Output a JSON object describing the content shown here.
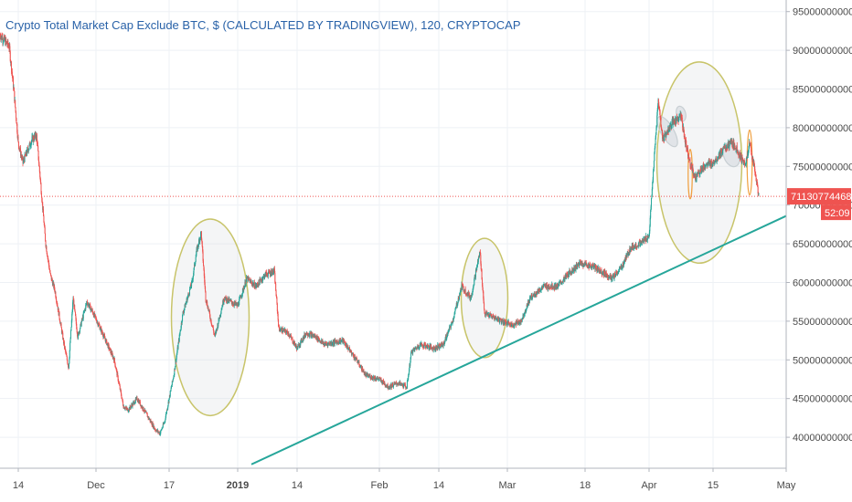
{
  "chart_data": {
    "type": "candlestick",
    "title": "Crypto Total Market Cap Exclude BTC, $ (CALCULATED BY TRADINGVIEW), 120, CRYPTOCAP",
    "y_ticks": [
      40000000000,
      45000000000,
      50000000000,
      55000000000,
      60000000000,
      65000000000,
      70000000000,
      75000000000,
      80000000000,
      85000000000,
      90000000000,
      95000000000
    ],
    "y_tick_labels": [
      "40000000000",
      "45000000000",
      "50000000000",
      "55000000000",
      "60000000000",
      "65000000000",
      "70000000000",
      "75000000000",
      "80000000000",
      "85000000000",
      "90000000000",
      "95000000000"
    ],
    "ylim": [
      36000000000,
      96500000000
    ],
    "x_tick_labels": [
      {
        "label": "14",
        "date": "2018-11-14"
      },
      {
        "label": "Dec",
        "date": "2018-12-01"
      },
      {
        "label": "17",
        "date": "2018-12-17"
      },
      {
        "label": "2019",
        "date": "2019-01-01",
        "bold": true
      },
      {
        "label": "14",
        "date": "2019-01-14"
      },
      {
        "label": "Feb",
        "date": "2019-02-01"
      },
      {
        "label": "14",
        "date": "2019-02-14"
      },
      {
        "label": "Mar",
        "date": "2019-03-01"
      },
      {
        "label": "18",
        "date": "2019-03-18"
      },
      {
        "label": "Apr",
        "date": "2019-04-01"
      },
      {
        "label": "15",
        "date": "2019-04-15"
      },
      {
        "label": "May",
        "date": "2019-05-01"
      }
    ],
    "xlim": [
      "2018-11-10",
      "2019-05-01"
    ],
    "last_price": 71130774468,
    "last_price_label": "71130774468",
    "countdown_label": "52:09",
    "price_path": [
      [
        "2018-11-10",
        92000000000
      ],
      [
        "2018-11-12",
        90500000000
      ],
      [
        "2018-11-13",
        85000000000
      ],
      [
        "2018-11-14",
        78000000000
      ],
      [
        "2018-11-15",
        75500000000
      ],
      [
        "2018-11-17",
        78500000000
      ],
      [
        "2018-11-18",
        79000000000
      ],
      [
        "2018-11-19",
        72000000000
      ],
      [
        "2018-11-20",
        65000000000
      ],
      [
        "2018-11-21",
        61000000000
      ],
      [
        "2018-11-22",
        59000000000
      ],
      [
        "2018-11-24",
        52000000000
      ],
      [
        "2018-11-25",
        49000000000
      ],
      [
        "2018-11-26",
        58000000000
      ],
      [
        "2018-11-27",
        53000000000
      ],
      [
        "2018-11-29",
        57500000000
      ],
      [
        "2018-11-30",
        56500000000
      ],
      [
        "2018-12-02",
        54000000000
      ],
      [
        "2018-12-05",
        50000000000
      ],
      [
        "2018-12-07",
        44000000000
      ],
      [
        "2018-12-08",
        43500000000
      ],
      [
        "2018-12-10",
        45000000000
      ],
      [
        "2018-12-12",
        43000000000
      ],
      [
        "2018-12-14",
        41000000000
      ],
      [
        "2018-12-15",
        40500000000
      ],
      [
        "2018-12-16",
        42000000000
      ],
      [
        "2018-12-17",
        45000000000
      ],
      [
        "2018-12-18",
        48000000000
      ],
      [
        "2018-12-19",
        52000000000
      ],
      [
        "2018-12-20",
        56000000000
      ],
      [
        "2018-12-21",
        58000000000
      ],
      [
        "2018-12-22",
        60000000000
      ],
      [
        "2018-12-23",
        64000000000
      ],
      [
        "2018-12-24",
        66500000000
      ],
      [
        "2018-12-25",
        58000000000
      ],
      [
        "2018-12-27",
        53000000000
      ],
      [
        "2018-12-29",
        58000000000
      ],
      [
        "2019-01-01",
        57000000000
      ],
      [
        "2019-01-03",
        60500000000
      ],
      [
        "2019-01-05",
        59500000000
      ],
      [
        "2019-01-07",
        61000000000
      ],
      [
        "2019-01-09",
        61500000000
      ],
      [
        "2019-01-10",
        54000000000
      ],
      [
        "2019-01-12",
        53500000000
      ],
      [
        "2019-01-14",
        51500000000
      ],
      [
        "2019-01-16",
        53500000000
      ],
      [
        "2019-01-18",
        53000000000
      ],
      [
        "2019-01-20",
        52000000000
      ],
      [
        "2019-01-24",
        52500000000
      ],
      [
        "2019-01-27",
        50000000000
      ],
      [
        "2019-01-29",
        48000000000
      ],
      [
        "2019-02-01",
        47500000000
      ],
      [
        "2019-02-03",
        46500000000
      ],
      [
        "2019-02-05",
        47000000000
      ],
      [
        "2019-02-07",
        46500000000
      ],
      [
        "2019-02-08",
        51000000000
      ],
      [
        "2019-02-10",
        52000000000
      ],
      [
        "2019-02-13",
        51500000000
      ],
      [
        "2019-02-15",
        52000000000
      ],
      [
        "2019-02-17",
        55000000000
      ],
      [
        "2019-02-19",
        59500000000
      ],
      [
        "2019-02-21",
        58000000000
      ],
      [
        "2019-02-23",
        64000000000
      ],
      [
        "2019-02-24",
        56000000000
      ],
      [
        "2019-02-26",
        55500000000
      ],
      [
        "2019-02-28",
        55000000000
      ],
      [
        "2019-03-02",
        54500000000
      ],
      [
        "2019-03-04",
        55000000000
      ],
      [
        "2019-03-06",
        58000000000
      ],
      [
        "2019-03-09",
        59500000000
      ],
      [
        "2019-03-12",
        59500000000
      ],
      [
        "2019-03-15",
        61500000000
      ],
      [
        "2019-03-17",
        62500000000
      ],
      [
        "2019-03-20",
        62000000000
      ],
      [
        "2019-03-24",
        60500000000
      ],
      [
        "2019-03-26",
        62000000000
      ],
      [
        "2019-03-28",
        64500000000
      ],
      [
        "2019-03-30",
        65000000000
      ],
      [
        "2019-04-01",
        66000000000
      ],
      [
        "2019-04-02",
        75000000000
      ],
      [
        "2019-04-03",
        83500000000
      ],
      [
        "2019-04-04",
        78500000000
      ],
      [
        "2019-04-06",
        80500000000
      ],
      [
        "2019-04-08",
        81500000000
      ],
      [
        "2019-04-09",
        78000000000
      ],
      [
        "2019-04-10",
        75500000000
      ],
      [
        "2019-04-11",
        73500000000
      ],
      [
        "2019-04-13",
        75000000000
      ],
      [
        "2019-04-15",
        75500000000
      ],
      [
        "2019-04-17",
        77000000000
      ],
      [
        "2019-04-19",
        78000000000
      ],
      [
        "2019-04-20",
        77500000000
      ],
      [
        "2019-04-22",
        75000000000
      ],
      [
        "2019-04-23",
        78000000000
      ],
      [
        "2019-04-24",
        75000000000
      ],
      [
        "2019-04-25",
        71130774468
      ]
    ],
    "trendline": {
      "color": "#26a69a",
      "points": [
        [
          "2019-01-04",
          36500000000
        ],
        [
          "2019-05-01",
          68600000000
        ]
      ]
    },
    "ellipses": [
      {
        "center": [
          "2018-12-26",
          55500000000
        ],
        "rx_days": 8.5,
        "ry": 12700000000
      },
      {
        "center": [
          "2019-02-24",
          58000000000
        ],
        "rx_days": 5.1,
        "ry": 7700000000
      },
      {
        "center": [
          "2019-04-12",
          75500000000
        ],
        "rx_days": 9.3,
        "ry": 13000000000
      }
    ],
    "highlights": [
      {
        "center": [
          "2019-04-05",
          79500000000
        ],
        "rx_days": 1.4,
        "ry": 2200000000,
        "angle": -30,
        "color": "#c8cfd3",
        "fill": true
      },
      {
        "center": [
          "2019-04-08",
          81800000000
        ],
        "rx_days": 1.0,
        "ry": 1000000000,
        "angle": -15,
        "color": "#c8cfd3",
        "fill": true
      },
      {
        "center": [
          "2019-04-10",
          74000000000
        ],
        "rx_days": 0.45,
        "ry": 3200000000,
        "angle": 0,
        "color": "#f0a040",
        "fill": false
      },
      {
        "center": [
          "2019-04-19",
          76500000000
        ],
        "rx_days": 1.7,
        "ry": 1600000000,
        "angle": -20,
        "color": "#c8cfd3",
        "fill": true
      },
      {
        "center": [
          "2019-04-23",
          75500000000
        ],
        "rx_days": 0.55,
        "ry": 4200000000,
        "angle": 0,
        "color": "#f0a040",
        "fill": false
      }
    ],
    "grid": true,
    "colors": {
      "up": "#26a69a",
      "down": "#ef5350",
      "ellipse": "#c8c46a",
      "price_line": "#ef5350",
      "grid": "#eef1f5",
      "axis_text": "#4a4a4a"
    }
  }
}
